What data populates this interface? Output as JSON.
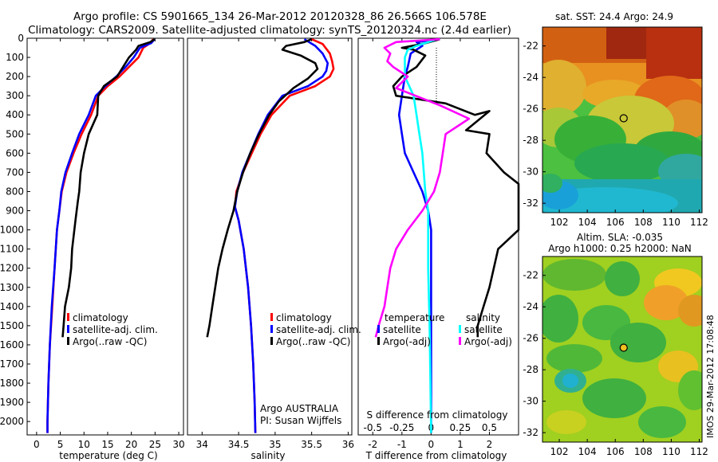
{
  "title_line1": "Argo profile: CS 5901665_134 26-Mar-2012 20120328_86 26.566S 106.578E",
  "title_line2": "Climatology: CARS2009. Satellite-adjusted climatology: synTS_20120324.nc (2.4d earlier)",
  "colors": {
    "climatology": "#ff0000",
    "satellite": "#0000ff",
    "argo": "#000000",
    "salinity_sat": "#00ffff",
    "salinity_argo": "#ff00ff"
  },
  "chart_data": [
    {
      "type": "line",
      "xlabel": "temperature (deg C)",
      "xlim": [
        -2,
        31
      ],
      "ylim": [
        2070,
        0
      ],
      "xticks": [
        0,
        5,
        10,
        15,
        20,
        25,
        30
      ],
      "yticks": [
        0,
        100,
        200,
        300,
        400,
        500,
        600,
        700,
        800,
        900,
        1000,
        1100,
        1200,
        1300,
        1400,
        1500,
        1600,
        1700,
        1800,
        1900,
        2000
      ],
      "legend": [
        "climatology",
        "satellite-adj. clim.",
        "Argo(..raw -QC)"
      ],
      "series": [
        {
          "name": "climatology",
          "color": "#ff0000",
          "points": [
            [
              24.6,
              5
            ],
            [
              24.0,
              25
            ],
            [
              22.5,
              50
            ],
            [
              21.5,
              100
            ],
            [
              19.5,
              150
            ],
            [
              17.5,
              200
            ],
            [
              15.0,
              250
            ],
            [
              13.0,
              300
            ],
            [
              11.5,
              400
            ],
            [
              9.5,
              500
            ],
            [
              7.8,
              600
            ],
            [
              6.3,
              700
            ],
            [
              5.3,
              800
            ],
            [
              4.8,
              900
            ],
            [
              4.3,
              1000
            ],
            [
              3.8,
              1200
            ],
            [
              3.3,
              1400
            ],
            [
              2.8,
              1600
            ],
            [
              2.5,
              1800
            ],
            [
              2.3,
              2000
            ],
            [
              2.3,
              2060
            ]
          ]
        },
        {
          "name": "satellite-adj. clim.",
          "color": "#0000ff",
          "points": [
            [
              24.9,
              5
            ],
            [
              24.2,
              25
            ],
            [
              21.8,
              50
            ],
            [
              20.5,
              100
            ],
            [
              18.8,
              150
            ],
            [
              16.8,
              200
            ],
            [
              14.5,
              250
            ],
            [
              12.5,
              300
            ],
            [
              11.0,
              400
            ],
            [
              9.0,
              500
            ],
            [
              7.5,
              600
            ],
            [
              6.1,
              700
            ],
            [
              5.2,
              800
            ],
            [
              4.8,
              900
            ],
            [
              4.3,
              1000
            ],
            [
              3.8,
              1200
            ],
            [
              3.2,
              1400
            ],
            [
              2.8,
              1600
            ],
            [
              2.5,
              1800
            ],
            [
              2.3,
              2000
            ],
            [
              2.3,
              2060
            ]
          ]
        },
        {
          "name": "Argo(..raw -QC)",
          "color": "#000000",
          "points": [
            [
              24.9,
              5
            ],
            [
              24.0,
              20
            ],
            [
              21.5,
              40
            ],
            [
              21.0,
              60
            ],
            [
              19.5,
              100
            ],
            [
              17.0,
              200
            ],
            [
              14.2,
              250
            ],
            [
              13.0,
              300
            ],
            [
              12.8,
              400
            ],
            [
              11.0,
              500
            ],
            [
              10.0,
              600
            ],
            [
              9.3,
              700
            ],
            [
              9.0,
              800
            ],
            [
              8.7,
              850
            ],
            [
              8.2,
              950
            ],
            [
              7.5,
              1100
            ],
            [
              7.3,
              1200
            ],
            [
              6.8,
              1300
            ],
            [
              6.0,
              1400
            ],
            [
              5.7,
              1500
            ],
            [
              5.5,
              1560
            ]
          ]
        }
      ]
    },
    {
      "type": "line",
      "xlabel": "salinity",
      "xlim": [
        33.8,
        36.05
      ],
      "ylim": [
        2070,
        0
      ],
      "xticks": [
        34,
        34.5,
        35,
        35.5,
        36
      ],
      "legend": [
        "climatology",
        "satellite-adj. clim.",
        "Argo(..raw -QC)"
      ],
      "annotations": [
        "Argo AUSTRALIA",
        "PI: Susan Wijffels"
      ],
      "series": [
        {
          "name": "climatology",
          "color": "#ff0000",
          "points": [
            [
              35.5,
              5
            ],
            [
              35.65,
              30
            ],
            [
              35.75,
              80
            ],
            [
              35.78,
              120
            ],
            [
              35.8,
              160
            ],
            [
              35.75,
              200
            ],
            [
              35.55,
              250
            ],
            [
              35.2,
              300
            ],
            [
              34.95,
              400
            ],
            [
              34.8,
              500
            ],
            [
              34.68,
              600
            ],
            [
              34.56,
              700
            ],
            [
              34.47,
              800
            ],
            [
              34.45,
              880
            ],
            [
              34.5,
              950
            ],
            [
              34.57,
              1100
            ],
            [
              34.63,
              1300
            ],
            [
              34.67,
              1500
            ],
            [
              34.7,
              1700
            ],
            [
              34.72,
              1900
            ],
            [
              34.73,
              2060
            ]
          ]
        },
        {
          "name": "satellite-adj. clim.",
          "color": "#0000ff",
          "points": [
            [
              35.4,
              5
            ],
            [
              35.55,
              40
            ],
            [
              35.65,
              80
            ],
            [
              35.72,
              130
            ],
            [
              35.7,
              170
            ],
            [
              35.65,
              200
            ],
            [
              35.45,
              250
            ],
            [
              35.1,
              300
            ],
            [
              34.9,
              400
            ],
            [
              34.77,
              500
            ],
            [
              34.66,
              600
            ],
            [
              34.55,
              700
            ],
            [
              34.48,
              800
            ],
            [
              34.45,
              880
            ],
            [
              34.5,
              950
            ],
            [
              34.57,
              1100
            ],
            [
              34.63,
              1300
            ],
            [
              34.67,
              1500
            ],
            [
              34.7,
              1700
            ],
            [
              34.72,
              1900
            ],
            [
              34.73,
              2060
            ]
          ]
        },
        {
          "name": "Argo(..raw -QC)",
          "color": "#000000",
          "points": [
            [
              35.5,
              5
            ],
            [
              35.4,
              20
            ],
            [
              35.15,
              40
            ],
            [
              35.1,
              60
            ],
            [
              35.35,
              90
            ],
            [
              35.55,
              130
            ],
            [
              35.58,
              160
            ],
            [
              35.45,
              210
            ],
            [
              35.25,
              260
            ],
            [
              35.05,
              330
            ],
            [
              34.92,
              400
            ],
            [
              34.78,
              500
            ],
            [
              34.66,
              600
            ],
            [
              34.56,
              700
            ],
            [
              34.48,
              800
            ],
            [
              34.43,
              900
            ],
            [
              34.35,
              1000
            ],
            [
              34.28,
              1100
            ],
            [
              34.22,
              1200
            ],
            [
              34.18,
              1300
            ],
            [
              34.14,
              1400
            ],
            [
              34.1,
              1500
            ],
            [
              34.07,
              1560
            ]
          ]
        }
      ]
    },
    {
      "type": "line",
      "xlabel": "T difference from climatology",
      "xlabel_top": "S difference from climatology",
      "xlim": [
        -2.5,
        3.0
      ],
      "ylim": [
        2070,
        0
      ],
      "xticks": [
        -2,
        -1,
        0,
        1,
        2
      ],
      "xticks_top": [
        -0.5,
        -0.25,
        0,
        0.25,
        0.5
      ],
      "legend": [
        "temperature",
        "satellite",
        "Argo(-adj)",
        "salinity",
        "satellite",
        "Argo(-adj)"
      ],
      "series": [
        {
          "name": "satellite",
          "color": "#0000ff",
          "points": [
            [
              0.3,
              5
            ],
            [
              -0.5,
              20
            ],
            [
              -0.3,
              40
            ],
            [
              -0.7,
              80
            ],
            [
              -0.8,
              150
            ],
            [
              -0.9,
              200
            ],
            [
              -1.0,
              300
            ],
            [
              -1.1,
              400
            ],
            [
              -1.0,
              500
            ],
            [
              -0.9,
              600
            ],
            [
              -0.6,
              700
            ],
            [
              -0.3,
              800
            ],
            [
              -0.1,
              900
            ],
            [
              0.0,
              1000
            ],
            [
              0.0,
              1100
            ],
            [
              0.0,
              1300
            ],
            [
              0.0,
              1500
            ],
            [
              0.0,
              2060
            ]
          ]
        },
        {
          "name": "Argo(-adj)",
          "color": "#000000",
          "points": [
            [
              0.3,
              5
            ],
            [
              -0.3,
              30
            ],
            [
              -1.0,
              50
            ],
            [
              -0.6,
              60
            ],
            [
              -0.2,
              90
            ],
            [
              -0.5,
              150
            ],
            [
              -1.0,
              200
            ],
            [
              -1.3,
              250
            ],
            [
              -1.2,
              300
            ],
            [
              0.5,
              340
            ],
            [
              1.5,
              400
            ],
            [
              2.0,
              380
            ],
            [
              1.2,
              480
            ],
            [
              2.0,
              500
            ],
            [
              1.9,
              600
            ],
            [
              2.5,
              700
            ],
            [
              3.0,
              760
            ],
            [
              3.0,
              900
            ],
            [
              3.0,
              1000
            ],
            [
              2.3,
              1100
            ],
            [
              2.0,
              1300
            ],
            [
              1.8,
              1400
            ],
            [
              1.6,
              1500
            ],
            [
              1.6,
              1560
            ]
          ]
        },
        {
          "name": "satellite",
          "color": "#00ffff",
          "points": [
            [
              0.2,
              5
            ],
            [
              -0.5,
              40
            ],
            [
              -0.8,
              60
            ],
            [
              -0.9,
              100
            ],
            [
              -0.9,
              200
            ],
            [
              -0.6,
              300
            ],
            [
              -0.5,
              400
            ],
            [
              -0.4,
              500
            ],
            [
              -0.3,
              600
            ],
            [
              -0.2,
              800
            ],
            [
              -0.1,
              900
            ],
            [
              -0.1,
              1000
            ],
            [
              -0.1,
              1200
            ],
            [
              -0.05,
              1500
            ],
            [
              0.0,
              2060
            ]
          ]
        },
        {
          "name": "Argo(-adj)",
          "color": "#ff00ff",
          "points": [
            [
              0.3,
              5
            ],
            [
              -1.2,
              20
            ],
            [
              -1.6,
              50
            ],
            [
              -1.4,
              80
            ],
            [
              -1.5,
              120
            ],
            [
              -1.3,
              150
            ],
            [
              -0.8,
              200
            ],
            [
              -1.2,
              260
            ],
            [
              0.3,
              350
            ],
            [
              1.3,
              420
            ],
            [
              0.5,
              500
            ],
            [
              0.4,
              600
            ],
            [
              0.3,
              700
            ],
            [
              0.1,
              800
            ],
            [
              -0.3,
              900
            ],
            [
              -0.8,
              1000
            ],
            [
              -1.2,
              1100
            ],
            [
              -1.4,
              1200
            ],
            [
              -1.5,
              1300
            ],
            [
              -1.6,
              1400
            ],
            [
              -1.8,
              1500
            ],
            [
              -1.9,
              1560
            ]
          ]
        }
      ]
    },
    {
      "type": "heatmap",
      "title": "sat. SST: 24.4  Argo: 24.9",
      "xlim": [
        100.8,
        112.2
      ],
      "ylim": [
        -32.6,
        -20.8
      ],
      "xticks": [
        102,
        104,
        106,
        108,
        110,
        112
      ],
      "yticks": [
        -22,
        -24,
        -26,
        -28,
        -30,
        -32
      ],
      "marker": [
        106.6,
        -26.6
      ]
    },
    {
      "type": "heatmap",
      "title_line1": "Altim. SLA: -0.035",
      "title_line2": "Argo h1000: 0.25 h2000: NaN",
      "xlim": [
        100.8,
        112.2
      ],
      "ylim": [
        -32.6,
        -20.8
      ],
      "xticks": [
        102,
        104,
        106,
        108,
        110,
        112
      ],
      "yticks": [
        -22,
        -24,
        -26,
        -28,
        -30,
        -32
      ],
      "marker": [
        106.6,
        -26.6
      ]
    }
  ],
  "side_label": "IMOS 29-Mar-2012 17:08:48"
}
